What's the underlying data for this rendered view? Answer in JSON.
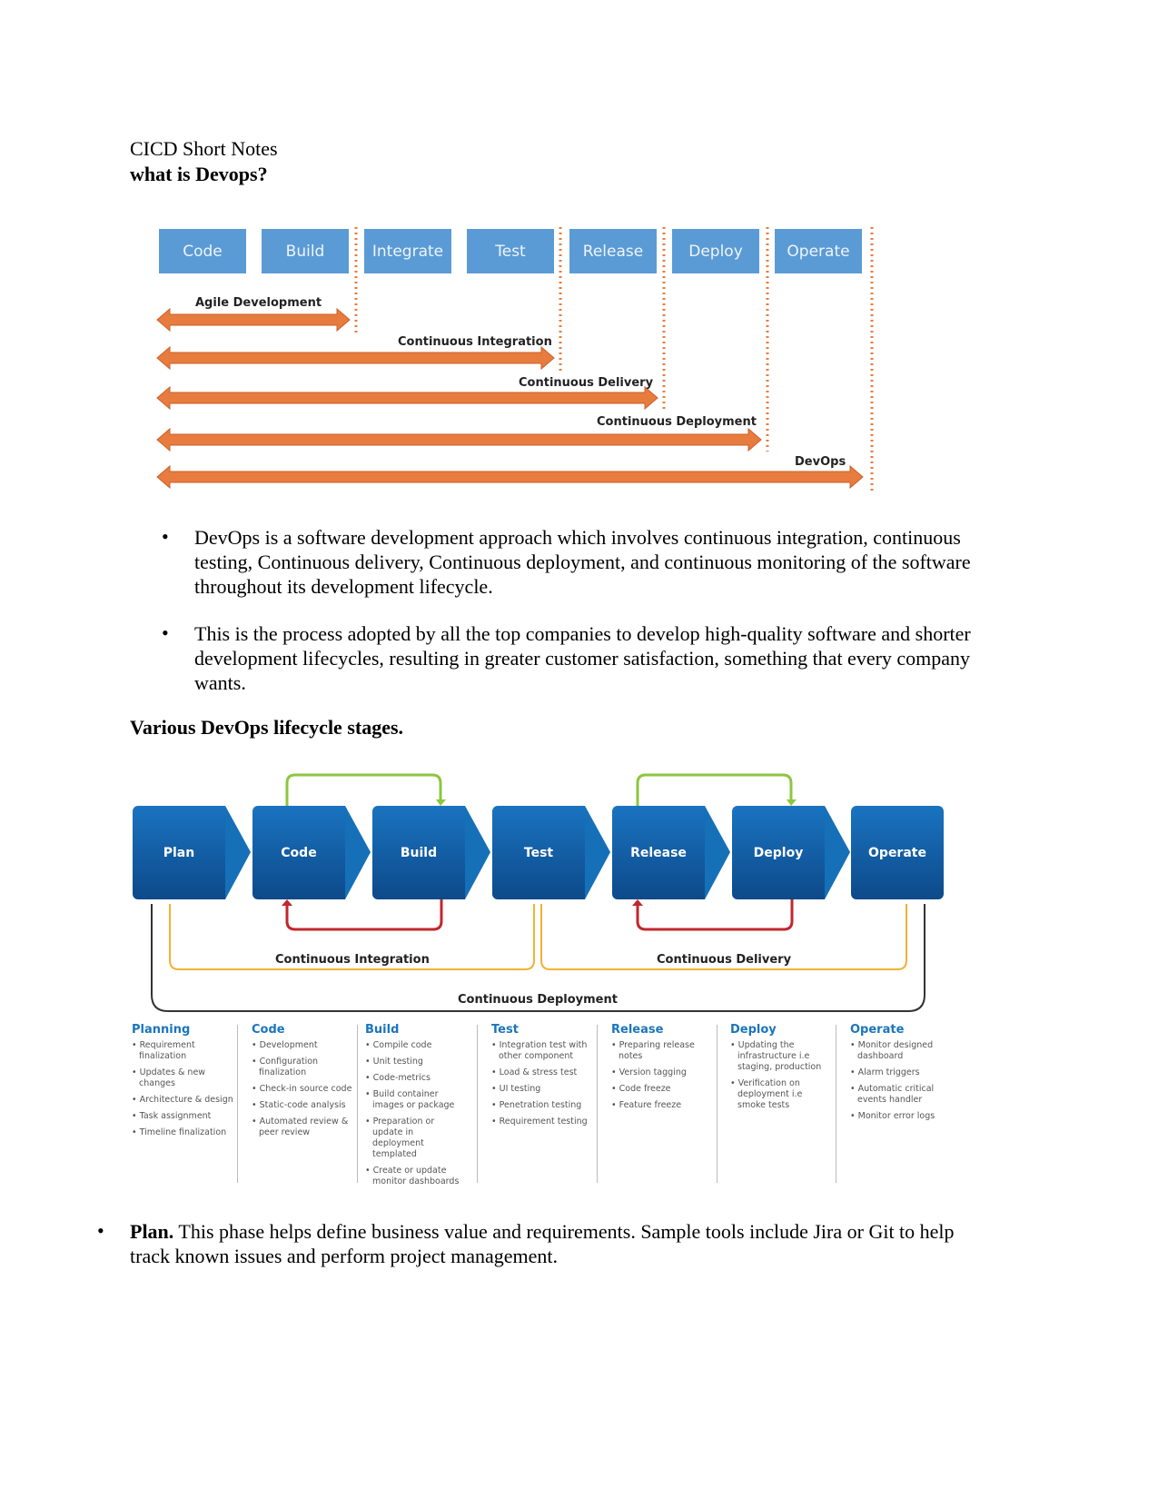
{
  "header": {
    "title": "CICD Short Notes",
    "subtitle": "what is Devops?"
  },
  "diagram1": {
    "stages": [
      "Code",
      "Build",
      "Integrate",
      "Test",
      "Release",
      "Deploy",
      "Operate"
    ],
    "spans": [
      "Agile Development",
      "Continuous Integration",
      "Continuous Delivery",
      "Continuous Deployment",
      "DevOps"
    ],
    "box_color": "#5b9bd5",
    "arrow_color": "#e87b3e"
  },
  "bullets": [
    "DevOps is a software development approach which involves continuous integration, continuous testing, Continuous delivery, Continuous deployment, and continuous monitoring of the software throughout its development lifecycle.",
    "This is the process adopted by all the top companies to develop high-quality software and shorter development lifecycles, resulting in greater customer satisfaction, something that every company wants."
  ],
  "section_heading": "Various DevOps lifecycle stages.",
  "diagram2": {
    "stages": [
      "Plan",
      "Code",
      "Build",
      "Test",
      "Release",
      "Deploy",
      "Operate"
    ],
    "brackets": [
      "Continuous Integration",
      "Continuous Delivery",
      "Continuous Deployment"
    ],
    "columns": [
      {
        "title": "Planning",
        "items": [
          "Requirement finalization",
          "Updates & new changes",
          "Architecture & design",
          "Task assignment",
          "Timeline finalization"
        ]
      },
      {
        "title": "Code",
        "items": [
          "Development",
          "Configuration finalization",
          "Check-in source code",
          "Static-code analysis",
          "Automated review & peer review"
        ]
      },
      {
        "title": "Build",
        "items": [
          "Compile code",
          "Unit testing",
          "Code-metrics",
          "Build container images or package",
          "Preparation or update in deployment templated",
          "Create or update monitor dashboards"
        ]
      },
      {
        "title": "Test",
        "items": [
          "Integration test with other component",
          "Load & stress test",
          "UI testing",
          "Penetration testing",
          "Requirement testing"
        ]
      },
      {
        "title": "Release",
        "items": [
          "Preparing release notes",
          "Version tagging",
          "Code freeze",
          "Feature freeze"
        ]
      },
      {
        "title": "Deploy",
        "items": [
          "Updating the infrastructure i.e staging, production",
          "Verification on deployment i.e smoke tests"
        ]
      },
      {
        "title": "Operate",
        "items": [
          "Monitor designed dashboard",
          "Alarm triggers",
          "Automatic critical events handler",
          "Monitor error logs"
        ]
      }
    ]
  },
  "plan_note": {
    "bold": "Plan.",
    "text": " This phase helps define business value and requirements. Sample tools include Jira or Git to help track known issues and perform project management."
  }
}
